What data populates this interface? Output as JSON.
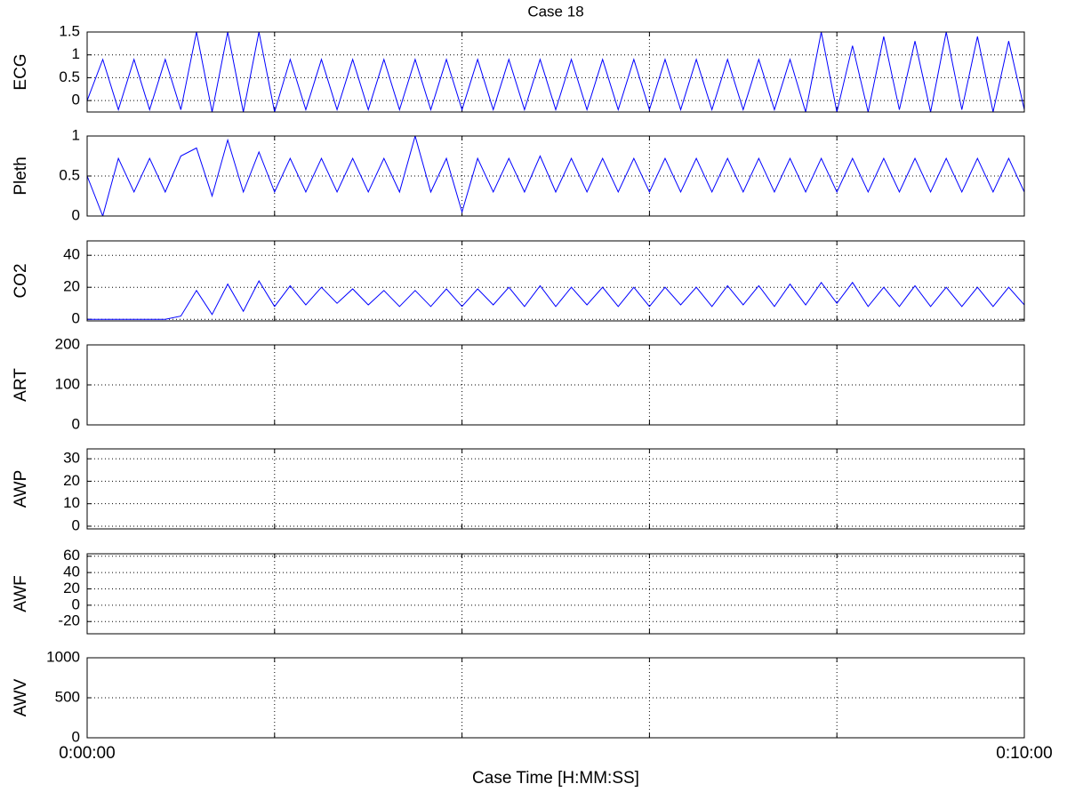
{
  "chart_data": [
    {
      "type": "line",
      "title": "Case 18",
      "ylabel": "ECG",
      "ylim": [
        -0.25,
        1.5
      ],
      "yticks": [
        0,
        0.5,
        1,
        1.5
      ],
      "xlim": [
        0,
        600
      ],
      "xticks": [
        {
          "value": 0,
          "label": null
        },
        {
          "value": 120,
          "label": null
        },
        {
          "value": 240,
          "label": null
        },
        {
          "value": 360,
          "label": null
        },
        {
          "value": 480,
          "label": null
        },
        {
          "value": 600,
          "label": null
        }
      ],
      "grid": true,
      "x": [
        0,
        10,
        20,
        30,
        40,
        50,
        60,
        70,
        80,
        90,
        100,
        110,
        120,
        130,
        140,
        150,
        160,
        170,
        180,
        190,
        200,
        210,
        220,
        230,
        240,
        250,
        260,
        270,
        280,
        290,
        300,
        310,
        320,
        330,
        340,
        350,
        360,
        370,
        380,
        390,
        400,
        410,
        420,
        430,
        440,
        450,
        460,
        470,
        480,
        490,
        500,
        510,
        520,
        530,
        540,
        550,
        560,
        570,
        580,
        590,
        600
      ],
      "series": [
        {
          "color": "#0000ff",
          "values": [
            0.0,
            0.9,
            -0.2,
            0.9,
            -0.2,
            0.9,
            -0.2,
            1.5,
            -0.25,
            1.5,
            -0.25,
            1.5,
            -0.25,
            0.9,
            -0.2,
            0.9,
            -0.2,
            0.9,
            -0.2,
            0.9,
            -0.2,
            0.9,
            -0.2,
            0.9,
            -0.2,
            0.9,
            -0.2,
            0.9,
            -0.2,
            0.9,
            -0.2,
            0.9,
            -0.2,
            0.9,
            -0.2,
            0.9,
            -0.2,
            0.9,
            -0.2,
            0.9,
            -0.2,
            0.9,
            -0.2,
            0.9,
            -0.2,
            0.9,
            -0.25,
            1.5,
            -0.25,
            1.2,
            -0.25,
            1.4,
            -0.2,
            1.3,
            -0.25,
            1.5,
            -0.2,
            1.4,
            -0.25,
            1.3,
            -0.2
          ]
        }
      ]
    },
    {
      "type": "line",
      "ylabel": "Pleth",
      "ylim": [
        0,
        1
      ],
      "yticks": [
        0,
        0.5,
        1
      ],
      "xlim": [
        0,
        600
      ],
      "xticks": [
        {
          "value": 0,
          "label": null
        },
        {
          "value": 120,
          "label": null
        },
        {
          "value": 240,
          "label": null
        },
        {
          "value": 360,
          "label": null
        },
        {
          "value": 480,
          "label": null
        },
        {
          "value": 600,
          "label": null
        }
      ],
      "grid": true,
      "x": [
        0,
        10,
        20,
        30,
        40,
        50,
        60,
        70,
        80,
        90,
        100,
        110,
        120,
        130,
        140,
        150,
        160,
        170,
        180,
        190,
        200,
        210,
        220,
        230,
        240,
        250,
        260,
        270,
        280,
        290,
        300,
        310,
        320,
        330,
        340,
        350,
        360,
        370,
        380,
        390,
        400,
        410,
        420,
        430,
        440,
        450,
        460,
        470,
        480,
        490,
        500,
        510,
        520,
        530,
        540,
        550,
        560,
        570,
        580,
        590,
        600
      ],
      "series": [
        {
          "color": "#0000ff",
          "values": [
            0.5,
            0.0,
            0.72,
            0.3,
            0.72,
            0.3,
            0.75,
            0.85,
            0.25,
            0.95,
            0.3,
            0.8,
            0.3,
            0.72,
            0.3,
            0.72,
            0.3,
            0.72,
            0.3,
            0.72,
            0.3,
            1.0,
            0.3,
            0.72,
            0.05,
            0.72,
            0.3,
            0.72,
            0.3,
            0.75,
            0.3,
            0.72,
            0.3,
            0.72,
            0.3,
            0.72,
            0.3,
            0.72,
            0.3,
            0.72,
            0.3,
            0.72,
            0.3,
            0.72,
            0.3,
            0.72,
            0.3,
            0.72,
            0.3,
            0.72,
            0.3,
            0.72,
            0.3,
            0.72,
            0.3,
            0.72,
            0.3,
            0.72,
            0.3,
            0.72,
            0.3
          ]
        }
      ]
    },
    {
      "type": "line",
      "ylabel": "CO2",
      "ylim": [
        -1,
        49
      ],
      "yticks": [
        0,
        20,
        40
      ],
      "xlim": [
        0,
        600
      ],
      "xticks": [
        {
          "value": 0,
          "label": null
        },
        {
          "value": 120,
          "label": null
        },
        {
          "value": 240,
          "label": null
        },
        {
          "value": 360,
          "label": null
        },
        {
          "value": 480,
          "label": null
        },
        {
          "value": 600,
          "label": null
        }
      ],
      "grid": true,
      "x": [
        0,
        10,
        20,
        30,
        40,
        50,
        60,
        70,
        80,
        90,
        100,
        110,
        120,
        130,
        140,
        150,
        160,
        170,
        180,
        190,
        200,
        210,
        220,
        230,
        240,
        250,
        260,
        270,
        280,
        290,
        300,
        310,
        320,
        330,
        340,
        350,
        360,
        370,
        380,
        390,
        400,
        410,
        420,
        430,
        440,
        450,
        460,
        470,
        480,
        490,
        500,
        510,
        520,
        530,
        540,
        550,
        560,
        570,
        580,
        590,
        600
      ],
      "series": [
        {
          "color": "#0000ff",
          "values": [
            0,
            0,
            0,
            0,
            0,
            0,
            2,
            18,
            3,
            22,
            5,
            24,
            8,
            21,
            9,
            20,
            10,
            19,
            9,
            18,
            8,
            18,
            8,
            19,
            8,
            19,
            9,
            20,
            8,
            21,
            8,
            20,
            9,
            20,
            8,
            20,
            8,
            20,
            9,
            20,
            8,
            21,
            9,
            21,
            8,
            22,
            9,
            23,
            10,
            23,
            8,
            20,
            8,
            21,
            8,
            20,
            8,
            20,
            8,
            20,
            9
          ]
        }
      ]
    },
    {
      "type": "line",
      "ylabel": "ART",
      "ylim": [
        0,
        200
      ],
      "yticks": [
        0,
        100,
        200
      ],
      "xlim": [
        0,
        600
      ],
      "xticks": [
        {
          "value": 0,
          "label": null
        },
        {
          "value": 120,
          "label": null
        },
        {
          "value": 240,
          "label": null
        },
        {
          "value": 360,
          "label": null
        },
        {
          "value": 480,
          "label": null
        },
        {
          "value": 600,
          "label": null
        }
      ],
      "grid": true
    },
    {
      "type": "line",
      "ylabel": "AWP",
      "ylim": [
        -1.2,
        34.4
      ],
      "yticks": [
        0,
        10,
        20,
        30
      ],
      "xlim": [
        0,
        600
      ],
      "xticks": [
        {
          "value": 0,
          "label": null
        },
        {
          "value": 120,
          "label": null
        },
        {
          "value": 240,
          "label": null
        },
        {
          "value": 360,
          "label": null
        },
        {
          "value": 480,
          "label": null
        },
        {
          "value": 600,
          "label": null
        }
      ],
      "grid": true
    },
    {
      "type": "line",
      "ylabel": "AWF",
      "ylim": [
        -35,
        63
      ],
      "yticks": [
        -20,
        0,
        20,
        40,
        60
      ],
      "xlim": [
        0,
        600
      ],
      "xticks": [
        {
          "value": 0,
          "label": null
        },
        {
          "value": 120,
          "label": null
        },
        {
          "value": 240,
          "label": null
        },
        {
          "value": 360,
          "label": null
        },
        {
          "value": 480,
          "label": null
        },
        {
          "value": 600,
          "label": null
        }
      ],
      "grid": true
    },
    {
      "type": "line",
      "ylabel": "AWV",
      "xlabel": "Case Time [H:MM:SS]",
      "ylim": [
        0,
        1000
      ],
      "yticks": [
        0,
        500,
        1000
      ],
      "xlim": [
        0,
        600
      ],
      "xticks": [
        {
          "value": 0,
          "label": "0:00:00"
        },
        {
          "value": 120,
          "label": null
        },
        {
          "value": 240,
          "label": null
        },
        {
          "value": 360,
          "label": null
        },
        {
          "value": 480,
          "label": null
        },
        {
          "value": 600,
          "label": "0:10:00"
        }
      ],
      "grid": true
    }
  ]
}
